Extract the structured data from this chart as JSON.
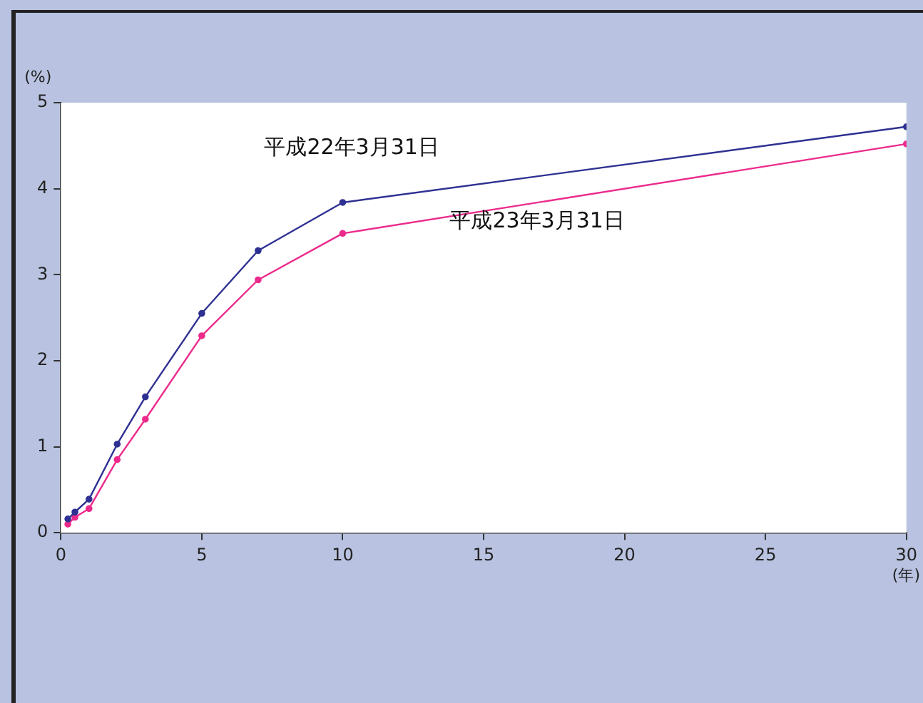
{
  "chart_data": {
    "type": "line",
    "ylabel": "(%)",
    "xlabel": "(年)",
    "xlim": [
      0,
      30
    ],
    "xticks": [
      0,
      5,
      10,
      15,
      20,
      25,
      30
    ],
    "ylim": [
      0,
      5
    ],
    "yticks": [
      0,
      1,
      2,
      3,
      4,
      5
    ],
    "grid": false,
    "legend": false,
    "marker": "circle",
    "line_style": "solid",
    "x": [
      0.25,
      0.5,
      1,
      2,
      3,
      5,
      7,
      10,
      30
    ],
    "series": [
      {
        "name": "平成22年3月31日",
        "color": "#2e3192",
        "values": [
          0.16,
          0.24,
          0.39,
          1.03,
          1.58,
          2.55,
          3.28,
          3.84,
          4.72
        ]
      },
      {
        "name": "平成23年3月31日",
        "color": "#ec2a8c",
        "values": [
          0.1,
          0.18,
          0.28,
          0.85,
          1.32,
          2.29,
          2.94,
          3.48,
          4.52
        ]
      }
    ]
  }
}
